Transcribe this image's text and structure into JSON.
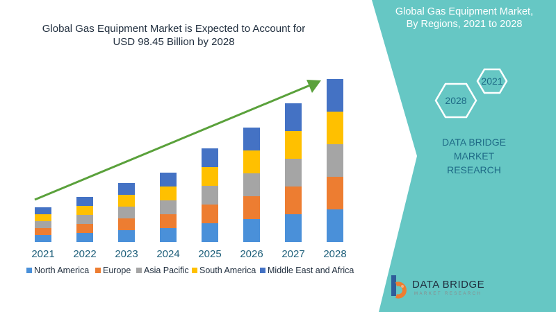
{
  "title_line1": "Global Gas Equipment Market is Expected to Account for",
  "title_line2": "USD 98.45 Billion by 2028",
  "panel": {
    "title_line1": "Global Gas Equipment Market,",
    "title_line2": "By Regions, 2021 to 2028",
    "hex_years": [
      "2021",
      "2028"
    ],
    "brand_line1": "DATA BRIDGE MARKET",
    "brand_line2": "RESEARCH"
  },
  "logo": {
    "name": "DATA BRIDGE",
    "tagline": "MARKET RESEARCH"
  },
  "colors": {
    "panel": "#66c7c4",
    "arrow": "#5aa13b",
    "series": [
      "#4a90d9",
      "#ed7d31",
      "#a5a5a5",
      "#ffc000",
      "#4472c4"
    ]
  },
  "chart_data": {
    "type": "bar",
    "stacked": true,
    "title": "Global Gas Equipment Market is Expected to Account for USD 98.45 Billion by 2028",
    "categories": [
      "2021",
      "2022",
      "2023",
      "2024",
      "2025",
      "2026",
      "2027",
      "2028"
    ],
    "series": [
      {
        "name": "North America",
        "values": [
          10,
          13,
          17,
          20,
          27,
          33,
          40,
          47
        ]
      },
      {
        "name": "Europe",
        "values": [
          10,
          13,
          17,
          20,
          27,
          33,
          40,
          47
        ]
      },
      {
        "name": "Asia Pacific",
        "values": [
          10,
          13,
          17,
          20,
          27,
          33,
          40,
          47
        ]
      },
      {
        "name": "South America",
        "values": [
          10,
          13,
          17,
          20,
          27,
          33,
          40,
          47
        ]
      },
      {
        "name": "Middle East and Africa",
        "values": [
          10,
          13,
          17,
          20,
          27,
          33,
          40,
          47
        ]
      }
    ],
    "legend_position": "bottom",
    "grid": false
  }
}
